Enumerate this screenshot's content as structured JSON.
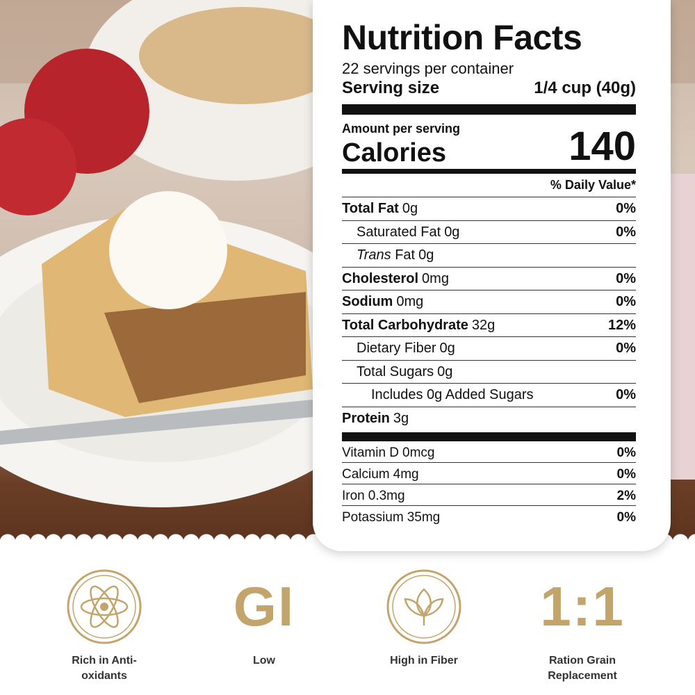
{
  "nutrition": {
    "title": "Nutrition Facts",
    "servings": "22 servings per container",
    "serving_size_label": "Serving size",
    "serving_size_value": "1/4 cup (40g)",
    "amount_per_serving": "Amount per serving",
    "calories_label": "Calories",
    "calories": 140,
    "daily_value_header": "% Daily Value*",
    "rows": [
      {
        "name": "Total Fat",
        "amount": "0g",
        "dv": "0%",
        "bold": true,
        "indent": 0
      },
      {
        "name": "Saturated Fat",
        "amount": "0g",
        "dv": "0%",
        "bold": false,
        "indent": 1
      },
      {
        "italic": "Trans",
        "name": "Fat",
        "amount": "0g",
        "bold": false,
        "indent": 1
      },
      {
        "name": "Cholesterol",
        "amount": "0mg",
        "dv": "0%",
        "bold": true,
        "indent": 0
      },
      {
        "name": "Sodium",
        "amount": "0mg",
        "dv": "0%",
        "bold": true,
        "indent": 0
      },
      {
        "name": "Total Carbohydrate",
        "amount": "32g",
        "dv": "12%",
        "bold": true,
        "indent": 0
      },
      {
        "name": "Dietary Fiber",
        "amount": "0g",
        "dv": "0%",
        "bold": false,
        "indent": 1
      },
      {
        "name": "Total Sugars",
        "amount": "0g",
        "bold": false,
        "indent": 1
      },
      {
        "name": "Includes 0g Added Sugars",
        "dv": "0%",
        "bold": false,
        "indent": 2
      },
      {
        "name": "Protein",
        "amount": "3g",
        "bold": true,
        "indent": 0
      }
    ],
    "vitamins": [
      {
        "name": "Vitamin D",
        "amount": "0mcg",
        "dv": "0%"
      },
      {
        "name": "Calcium",
        "amount": "4mg",
        "dv": "0%"
      },
      {
        "name": "Iron",
        "amount": "0.3mg",
        "dv": "2%"
      },
      {
        "name": "Potassium",
        "amount": "35mg",
        "dv": "0%"
      }
    ]
  },
  "features": [
    {
      "icon": "atom",
      "label": "Rich in Anti-oxidants"
    },
    {
      "icon_text": "GI",
      "label": "Low"
    },
    {
      "icon": "leaf",
      "label": "High in Fiber"
    },
    {
      "icon_text": "1:1",
      "label": "Ration Grain Replacement"
    }
  ]
}
